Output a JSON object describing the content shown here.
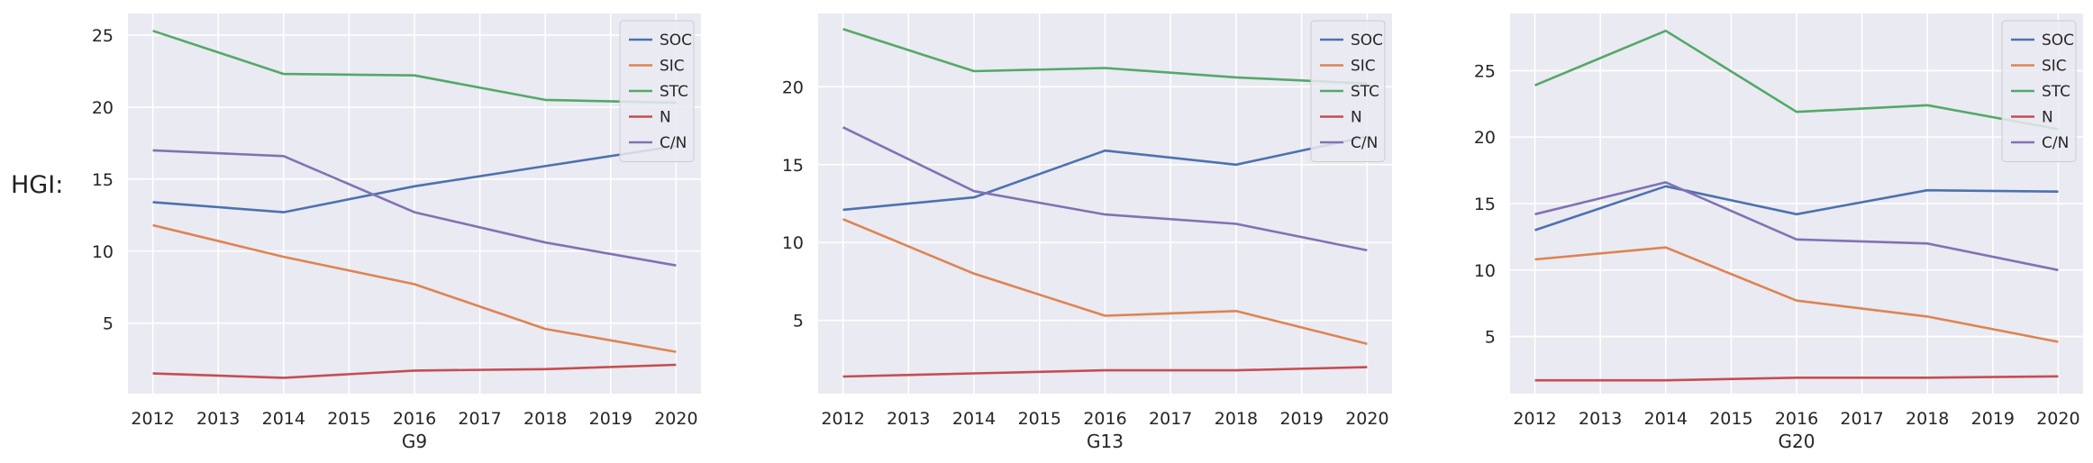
{
  "figure": {
    "row_label": "HGI:"
  },
  "series_colors": {
    "SOC": "#4c72b0",
    "SIC": "#dd8452",
    "STC": "#55a868",
    "N": "#c44e52",
    "C/N": "#8172b3"
  },
  "chart_data": [
    {
      "type": "line",
      "xlabel": "G9",
      "ylabel": "",
      "x": [
        2012,
        2014,
        2016,
        2018,
        2020
      ],
      "xticks": [
        2012,
        2013,
        2014,
        2015,
        2016,
        2017,
        2018,
        2019,
        2020
      ],
      "xlim": [
        2011.62,
        2020.38
      ],
      "yticks": [
        5,
        10,
        15,
        20,
        25
      ],
      "ylim": [
        0.1,
        26.5
      ],
      "grid": true,
      "legend_position": "top-right",
      "series": [
        {
          "name": "SOC",
          "values": [
            13.4,
            12.7,
            14.5,
            15.9,
            17.3
          ]
        },
        {
          "name": "SIC",
          "values": [
            11.8,
            9.6,
            7.7,
            4.6,
            3.0
          ]
        },
        {
          "name": "STC",
          "values": [
            25.3,
            22.3,
            22.2,
            20.5,
            20.3
          ]
        },
        {
          "name": "N",
          "values": [
            1.5,
            1.2,
            1.7,
            1.8,
            2.1
          ]
        },
        {
          "name": "C/N",
          "values": [
            17.0,
            16.6,
            12.7,
            10.6,
            9.0
          ]
        }
      ]
    },
    {
      "type": "line",
      "xlabel": "G13",
      "ylabel": "",
      "x": [
        2012,
        2014,
        2016,
        2018,
        2020
      ],
      "xticks": [
        2012,
        2013,
        2014,
        2015,
        2016,
        2017,
        2018,
        2019,
        2020
      ],
      "xlim": [
        2011.62,
        2020.38
      ],
      "yticks": [
        5,
        10,
        15,
        20
      ],
      "ylim": [
        0.3,
        24.7
      ],
      "grid": true,
      "legend_position": "top-right",
      "series": [
        {
          "name": "SOC",
          "values": [
            12.1,
            12.9,
            15.9,
            15.0,
            16.8
          ]
        },
        {
          "name": "SIC",
          "values": [
            11.5,
            8.0,
            5.3,
            5.6,
            3.5
          ]
        },
        {
          "name": "STC",
          "values": [
            23.7,
            21.0,
            21.2,
            20.6,
            20.2
          ]
        },
        {
          "name": "N",
          "values": [
            1.4,
            1.6,
            1.8,
            1.8,
            2.0
          ]
        },
        {
          "name": "C/N",
          "values": [
            17.4,
            13.3,
            11.8,
            11.2,
            9.5
          ]
        }
      ]
    },
    {
      "type": "line",
      "xlabel": "G20",
      "ylabel": "",
      "x": [
        2012,
        2014,
        2016,
        2018,
        2020
      ],
      "xticks": [
        2012,
        2013,
        2014,
        2015,
        2016,
        2017,
        2018,
        2019,
        2020
      ],
      "xlim": [
        2011.62,
        2020.38
      ],
      "yticks": [
        5,
        10,
        15,
        20,
        25
      ],
      "ylim": [
        0.7,
        29.3
      ],
      "grid": true,
      "legend_position": "top-right",
      "series": [
        {
          "name": "SOC",
          "values": [
            13.0,
            16.3,
            14.2,
            16.0,
            15.9
          ]
        },
        {
          "name": "SIC",
          "values": [
            10.8,
            11.7,
            7.7,
            6.5,
            4.6
          ]
        },
        {
          "name": "STC",
          "values": [
            23.9,
            28.0,
            21.9,
            22.4,
            20.6
          ]
        },
        {
          "name": "N",
          "values": [
            1.7,
            1.7,
            1.9,
            1.9,
            2.0
          ]
        },
        {
          "name": "C/N",
          "values": [
            14.2,
            16.6,
            12.3,
            12.0,
            10.0
          ]
        }
      ]
    }
  ]
}
